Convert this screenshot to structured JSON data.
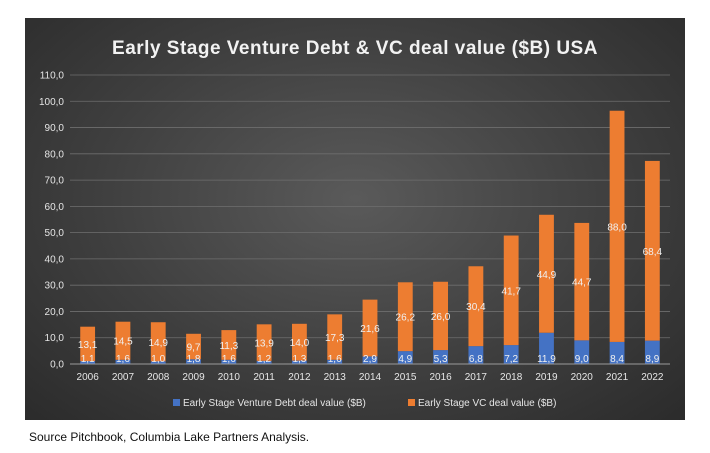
{
  "chart_data": {
    "type": "bar",
    "stacked": true,
    "title": "Early Stage Venture Debt & VC deal value ($B) USA",
    "categories": [
      "2006",
      "2007",
      "2008",
      "2009",
      "2010",
      "2011",
      "2012",
      "2013",
      "2014",
      "2015",
      "2016",
      "2017",
      "2018",
      "2019",
      "2020",
      "2021",
      "2022"
    ],
    "series": [
      {
        "name": "Early Stage Venture Debt deal value ($B)",
        "color": "#4472c4",
        "values": [
          1.1,
          1.6,
          1.0,
          1.8,
          1.6,
          1.2,
          1.3,
          1.6,
          2.9,
          4.9,
          5.3,
          6.8,
          7.2,
          11.9,
          9.0,
          8.4,
          8.9
        ],
        "labels": [
          "1,1",
          "1,6",
          "1,0",
          "1,8",
          "1,6",
          "1,2",
          "1,3",
          "1,6",
          "2,9",
          "4,9",
          "5,3",
          "6,8",
          "7,2",
          "11,9",
          "9,0",
          "8,4",
          "8,9"
        ]
      },
      {
        "name": "Early Stage VC deal value ($B)",
        "color": "#ed7d31",
        "values": [
          13.1,
          14.5,
          14.9,
          9.7,
          11.3,
          13.9,
          14.0,
          17.3,
          21.6,
          26.2,
          26.0,
          30.4,
          41.7,
          44.9,
          44.7,
          88.0,
          68.4
        ],
        "labels": [
          "13,1",
          "14,5",
          "14,9",
          "9,7",
          "11,3",
          "13,9",
          "14,0",
          "17,3",
          "21,6",
          "26,2",
          "26,0",
          "30,4",
          "41,7",
          "44,9",
          "44,7",
          "88,0",
          "68,4"
        ]
      }
    ],
    "ylim": [
      0,
      110
    ],
    "y_ticks": [
      "0,0",
      "10,0",
      "20,0",
      "30,0",
      "40,0",
      "50,0",
      "60,0",
      "70,0",
      "80,0",
      "90,0",
      "100,0",
      "110,0"
    ],
    "grid": true,
    "legend_position": "bottom"
  },
  "source_note": "Source Pitchbook, Columbia Lake Partners Analysis."
}
